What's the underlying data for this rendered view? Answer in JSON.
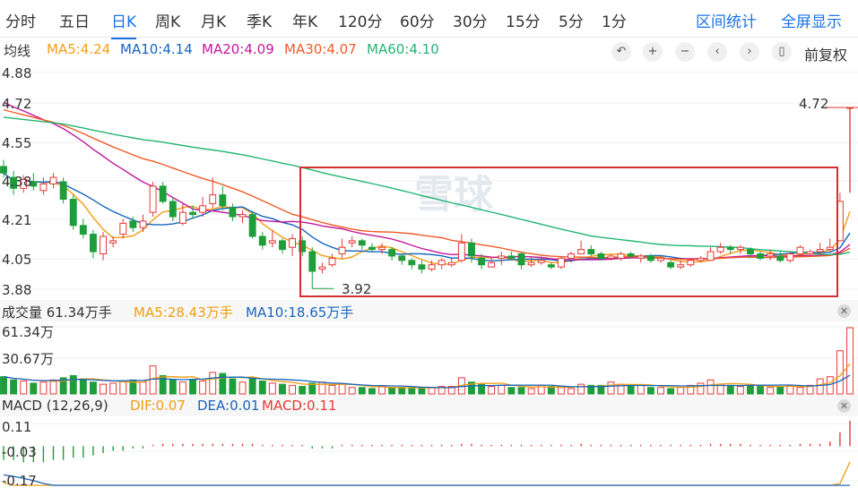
{
  "tabs": [
    "分时",
    "五日",
    "日K",
    "周K",
    "月K",
    "季K",
    "年K",
    "120分",
    "60分",
    "30分",
    "15分",
    "5分",
    "1分"
  ],
  "active_tab": "日K",
  "right_links": [
    "区间统计",
    "全屏显示"
  ],
  "price_legend": {
    "label": "均线",
    "items": [
      {
        "text": "MA5:4.24",
        "color": "#f39c12"
      },
      {
        "text": "MA10:4.14",
        "color": "#1565c0"
      },
      {
        "text": "MA20:4.09",
        "color": "#c2189c"
      },
      {
        "text": "MA30:4.07",
        "color": "#f05a28"
      },
      {
        "text": "MA60:4.10",
        "color": "#22b573"
      }
    ]
  },
  "toolbar": {
    "icons": [
      "undo-icon",
      "zoom-in-icon",
      "zoom-out-icon",
      "scroll-left-icon",
      "scroll-right-icon",
      "candle-style-icon"
    ],
    "adjust_label": "前复权"
  },
  "watermark": "雪球",
  "volume_legend": [
    {
      "text": "成交量 61.34万手",
      "color": "#333333"
    },
    {
      "text": "MA5:28.43万手",
      "color": "#f39c12"
    },
    {
      "text": "MA10:18.65万手",
      "color": "#1565c0"
    }
  ],
  "macd_legend": [
    {
      "text": "MACD (12,26,9)",
      "color": "#333333"
    },
    {
      "text": "DIF:0.07",
      "color": "#f39c12"
    },
    {
      "text": "DEA:0.01",
      "color": "#1565c0"
    },
    {
      "text": "MACD:0.11",
      "color": "#e53935"
    }
  ],
  "colors": {
    "up": "#e53935",
    "down": "#1e9e3a",
    "highlight_box": "#d32f2f"
  },
  "chart_data": [
    {
      "type": "candlestick",
      "title": "",
      "y_tick_labels": [
        "4.88",
        "4.72",
        "4.55",
        "4.38",
        "4.21",
        "4.05",
        "3.88"
      ],
      "ylim": [
        3.88,
        4.88
      ],
      "annotations": [
        {
          "text": "4.72",
          "kind": "last-price-line"
        },
        {
          "text": "3.92",
          "kind": "period-low"
        }
      ],
      "ma_values": {
        "MA5": 4.24,
        "MA10": 4.14,
        "MA20": 4.09,
        "MA30": 4.07,
        "MA60": 4.1
      },
      "candles": [
        [
          4.45,
          4.42,
          4.48,
          4.4
        ],
        [
          4.4,
          4.35,
          4.43,
          4.32
        ],
        [
          4.35,
          4.39,
          4.41,
          4.33
        ],
        [
          4.38,
          4.36,
          4.42,
          4.34
        ],
        [
          4.34,
          4.37,
          4.4,
          4.32
        ],
        [
          4.37,
          4.4,
          4.42,
          4.35
        ],
        [
          4.38,
          4.3,
          4.4,
          4.28
        ],
        [
          4.3,
          4.18,
          4.32,
          4.16
        ],
        [
          4.18,
          4.14,
          4.21,
          4.12
        ],
        [
          4.14,
          4.06,
          4.16,
          4.03
        ],
        [
          4.05,
          4.13,
          4.15,
          4.02
        ],
        [
          4.1,
          4.11,
          4.13,
          4.08
        ],
        [
          4.14,
          4.19,
          4.21,
          4.12
        ],
        [
          4.2,
          4.17,
          4.22,
          4.15
        ],
        [
          4.17,
          4.2,
          4.23,
          4.15
        ],
        [
          4.24,
          4.36,
          4.38,
          4.22
        ],
        [
          4.36,
          4.29,
          4.38,
          4.28
        ],
        [
          4.29,
          4.22,
          4.31,
          4.2
        ],
        [
          4.19,
          4.24,
          4.28,
          4.18
        ],
        [
          4.24,
          4.23,
          4.27,
          4.21
        ],
        [
          4.24,
          4.27,
          4.31,
          4.22
        ],
        [
          4.28,
          4.32,
          4.4,
          4.26
        ],
        [
          4.32,
          4.27,
          4.36,
          4.25
        ],
        [
          4.26,
          4.22,
          4.28,
          4.2
        ],
        [
          4.22,
          4.23,
          4.25,
          4.19
        ],
        [
          4.23,
          4.13,
          4.24,
          4.12
        ],
        [
          4.13,
          4.09,
          4.15,
          4.07
        ],
        [
          4.1,
          4.11,
          4.16,
          4.08
        ],
        [
          4.11,
          4.07,
          4.12,
          4.05
        ],
        [
          4.08,
          4.12,
          4.14,
          4.04
        ],
        [
          4.11,
          4.06,
          4.13,
          4.04
        ],
        [
          4.06,
          3.97,
          4.08,
          3.92
        ],
        [
          3.98,
          3.99,
          4.01,
          3.96
        ],
        [
          4.0,
          4.03,
          4.05,
          3.99
        ],
        [
          4.05,
          4.08,
          4.12,
          4.03
        ],
        [
          4.1,
          4.11,
          4.13,
          4.08
        ],
        [
          4.11,
          4.09,
          4.12,
          4.07
        ],
        [
          4.08,
          4.07,
          4.1,
          4.06
        ],
        [
          4.07,
          4.08,
          4.1,
          4.05
        ],
        [
          4.07,
          4.04,
          4.08,
          4.02
        ],
        [
          4.04,
          4.02,
          4.05,
          4.0
        ],
        [
          4.02,
          4.0,
          4.03,
          3.98
        ],
        [
          4.0,
          3.98,
          4.02,
          3.96
        ],
        [
          3.98,
          4.0,
          4.02,
          3.97
        ],
        [
          4.0,
          4.02,
          4.03,
          3.98
        ],
        [
          4.0,
          4.01,
          4.03,
          3.99
        ],
        [
          4.02,
          4.1,
          4.14,
          4.01
        ],
        [
          4.1,
          4.04,
          4.12,
          4.01
        ],
        [
          4.03,
          4.0,
          4.05,
          3.98
        ],
        [
          3.99,
          4.01,
          4.03,
          3.99
        ],
        [
          4.03,
          4.04,
          4.06,
          4.0
        ],
        [
          4.04,
          4.03,
          4.06,
          4.02
        ],
        [
          4.05,
          4.0,
          4.06,
          3.98
        ],
        [
          4.0,
          4.01,
          4.04,
          3.99
        ],
        [
          4.01,
          4.02,
          4.03,
          4.0
        ],
        [
          4.0,
          3.99,
          4.01,
          3.98
        ],
        [
          3.99,
          4.03,
          4.04,
          3.98
        ],
        [
          4.03,
          4.05,
          4.06,
          4.01
        ],
        [
          4.05,
          4.07,
          4.11,
          4.05
        ],
        [
          4.07,
          4.05,
          4.09,
          4.04
        ],
        [
          4.05,
          4.03,
          4.06,
          4.02
        ],
        [
          4.03,
          4.04,
          4.05,
          4.02
        ],
        [
          4.03,
          4.05,
          4.06,
          4.02
        ],
        [
          4.05,
          4.04,
          4.06,
          4.03
        ],
        [
          4.03,
          4.04,
          4.05,
          4.01
        ],
        [
          4.04,
          4.02,
          4.05,
          4.01
        ],
        [
          4.02,
          4.03,
          4.04,
          4.01
        ],
        [
          4.01,
          3.99,
          4.02,
          3.98
        ],
        [
          3.99,
          4.0,
          4.02,
          3.98
        ],
        [
          4.0,
          4.02,
          4.03,
          3.99
        ],
        [
          4.02,
          4.03,
          4.04,
          4.01
        ],
        [
          4.02,
          4.06,
          4.08,
          4.02
        ],
        [
          4.06,
          4.08,
          4.1,
          4.05
        ],
        [
          4.08,
          4.07,
          4.09,
          4.05
        ],
        [
          4.07,
          4.08,
          4.09,
          4.05
        ],
        [
          4.07,
          4.05,
          4.08,
          4.03
        ],
        [
          4.05,
          4.03,
          4.06,
          4.02
        ],
        [
          4.04,
          4.05,
          4.07,
          4.02
        ],
        [
          4.04,
          4.02,
          4.06,
          4.01
        ],
        [
          4.02,
          4.05,
          4.06,
          4.01
        ],
        [
          4.05,
          4.08,
          4.09,
          4.04
        ],
        [
          4.05,
          4.06,
          4.07,
          4.04
        ],
        [
          4.06,
          4.07,
          4.1,
          4.05
        ],
        [
          4.07,
          4.08,
          4.12,
          4.06
        ],
        [
          4.11,
          4.29,
          4.33,
          4.11
        ],
        [
          4.72,
          4.72,
          4.72,
          4.72
        ]
      ]
    },
    {
      "type": "bar",
      "title": "成交量",
      "y_tick_labels": [
        "61.34万",
        "30.67万"
      ],
      "ylim": [
        0,
        61.34
      ],
      "unit": "万手",
      "ma_values": {
        "MA5": 28.43,
        "MA10": 18.65
      },
      "values": [
        16,
        13,
        12,
        10,
        11,
        13,
        15,
        17,
        14,
        11,
        9,
        10,
        12,
        13,
        11,
        26,
        17,
        13,
        11,
        13,
        12,
        20,
        19,
        14,
        11,
        15,
        12,
        10,
        9,
        8,
        7,
        10,
        11,
        8,
        9,
        6,
        6,
        5,
        7,
        6,
        6,
        5,
        5,
        6,
        7,
        7,
        15,
        11,
        9,
        7,
        8,
        6,
        6,
        5,
        8,
        7,
        6,
        5,
        9,
        8,
        8,
        11,
        9,
        8,
        8,
        6,
        6,
        5,
        6,
        8,
        10,
        13,
        9,
        8,
        7,
        8,
        7,
        6,
        7,
        8,
        6,
        8,
        14,
        16,
        40,
        61.34
      ],
      "up_flags": [
        0,
        0,
        1,
        0,
        1,
        1,
        0,
        0,
        0,
        0,
        1,
        1,
        1,
        0,
        1,
        1,
        0,
        0,
        1,
        0,
        1,
        1,
        0,
        0,
        1,
        0,
        0,
        1,
        0,
        1,
        0,
        0,
        1,
        1,
        1,
        1,
        0,
        0,
        1,
        0,
        0,
        0,
        0,
        1,
        1,
        1,
        1,
        0,
        0,
        1,
        1,
        0,
        0,
        1,
        1,
        0,
        1,
        1,
        1,
        0,
        0,
        1,
        1,
        0,
        1,
        0,
        1,
        0,
        1,
        1,
        1,
        1,
        1,
        0,
        1,
        0,
        0,
        1,
        0,
        1,
        1,
        1,
        1,
        1,
        1,
        1
      ]
    },
    {
      "type": "bar",
      "title": "MACD (12,26,9)",
      "y_tick_labels": [
        "0.11",
        "-0.03",
        "-0.17"
      ],
      "ylim": [
        -0.17,
        0.11
      ],
      "values": [
        -0.06,
        -0.06,
        -0.07,
        -0.07,
        -0.07,
        -0.06,
        -0.06,
        -0.05,
        -0.05,
        -0.04,
        -0.03,
        -0.02,
        -0.02,
        -0.01,
        -0.01,
        0.0,
        0.01,
        0.01,
        0.01,
        0.01,
        0.01,
        0.01,
        0.01,
        0.01,
        0.01,
        0.01,
        0.0,
        0.0,
        0.0,
        0.0,
        0.0,
        -0.01,
        -0.01,
        -0.01,
        0.0,
        0.0,
        0.0,
        0.0,
        0.0,
        0.0,
        0.0,
        0.0,
        0.0,
        0.0,
        0.0,
        0.0,
        0.01,
        0.01,
        0.0,
        0.0,
        0.0,
        0.0,
        0.0,
        0.0,
        0.0,
        0.0,
        0.0,
        0.0,
        0.01,
        0.0,
        0.0,
        0.0,
        0.0,
        0.0,
        0.0,
        0.0,
        0.0,
        0.0,
        0.0,
        0.0,
        0.0,
        0.01,
        0.01,
        0.01,
        0.01,
        0.0,
        0.0,
        0.0,
        0.0,
        0.0,
        0.01,
        0.01,
        0.01,
        0.02,
        0.06,
        0.11
      ]
    }
  ]
}
